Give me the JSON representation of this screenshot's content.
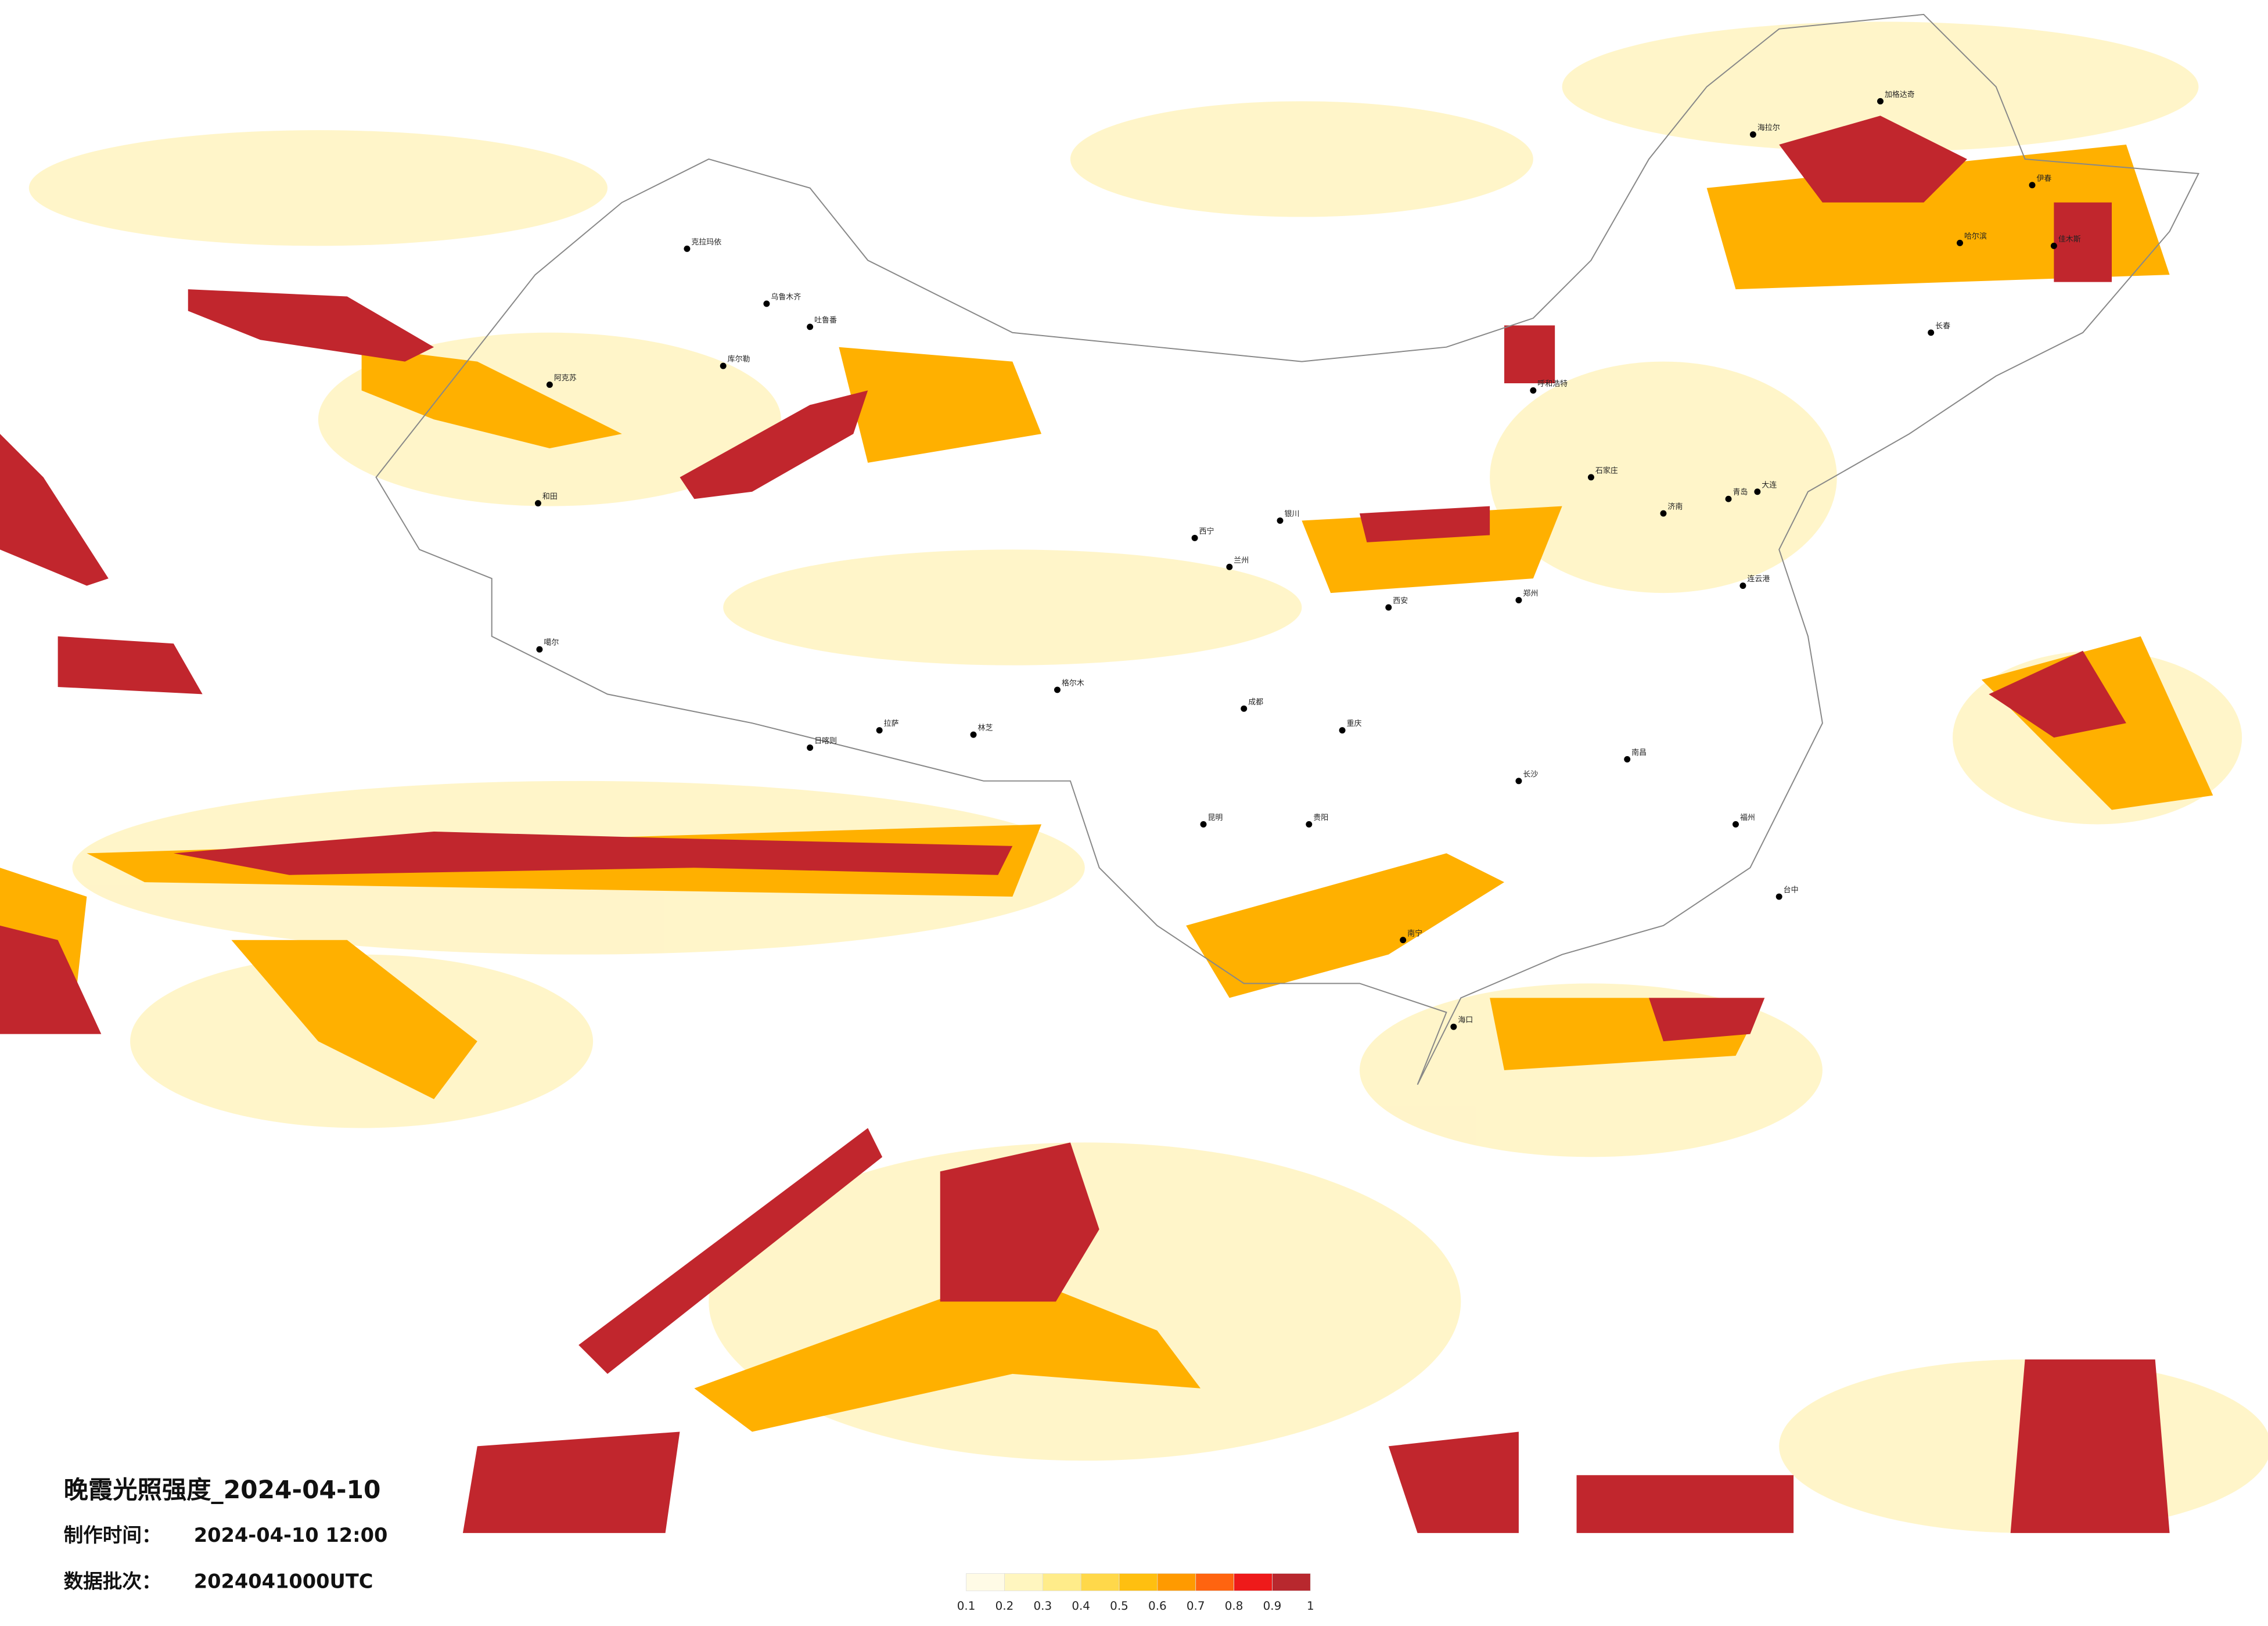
{
  "header": {
    "title": "晚霞光照强度_2024-04-10",
    "production_time_label": "制作时间：",
    "production_time": "2024-04-10 12:00",
    "batch_label": "数据批次：",
    "batch": "2024041000UTC"
  },
  "legend": {
    "ticks": [
      0.1,
      0.2,
      0.3,
      0.4,
      0.5,
      0.6,
      0.7,
      0.8,
      0.9,
      1
    ],
    "colors": [
      "#fffbe6",
      "#fff6bf",
      "#ffec8a",
      "#ffd84a",
      "#ffbf10",
      "#ff9a00",
      "#ff6410",
      "#ee1a1a",
      "#b8282e"
    ]
  },
  "cities": [
    "克拉玛依",
    "乌鲁木齐",
    "吐鲁番",
    "库尔勒",
    "阿克苏",
    "和田",
    "噶尔",
    "日喀则",
    "拉萨",
    "林芝",
    "格尔木",
    "西宁",
    "兰州",
    "银川",
    "呼和浩特",
    "石家庄",
    "济南",
    "郑州",
    "西安",
    "成都",
    "重庆",
    "贵阳",
    "昆明",
    "南宁",
    "海口",
    "长沙",
    "南昌",
    "福州",
    "台中",
    "哈尔滨",
    "长春",
    "海拉尔",
    "加格达奇",
    "伊春",
    "佳木斯",
    "大连",
    "青岛",
    "连云港"
  ]
}
